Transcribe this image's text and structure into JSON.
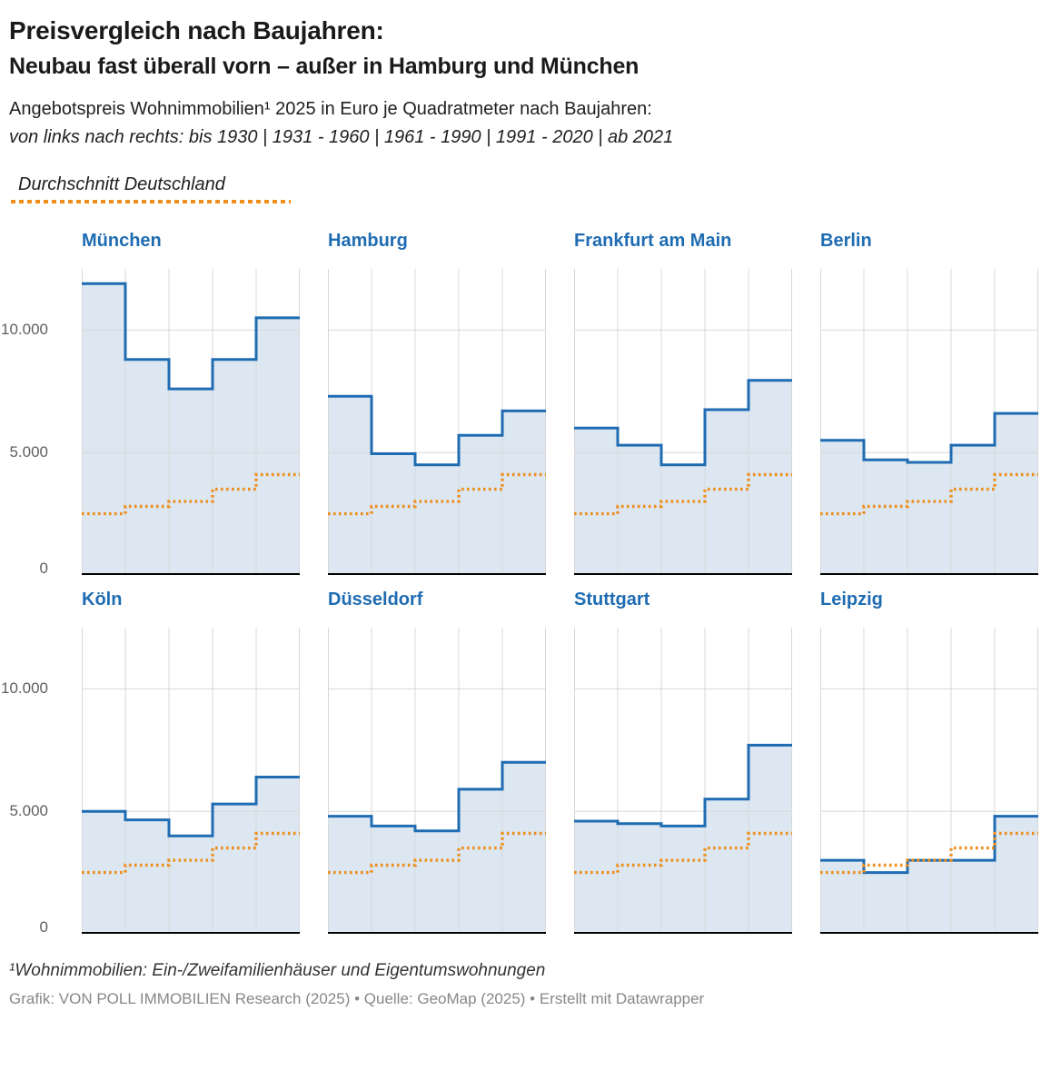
{
  "header": {
    "title_line1": "Preisvergleich nach Baujahren:",
    "title_line2": "Neubau fast überall vorn – außer in Hamburg und München",
    "description_line1": "Angebotspreis Wohnimmobilien¹ 2025 in Euro je Quadratmeter nach Baujahren:",
    "description_line2": "von links nach rechts: bis 1930 | 1931 - 1960 | 1961 - 1990 | 1991 - 2020 | ab 2021"
  },
  "legend": {
    "label": "Durchschnitt Deutschland"
  },
  "colors": {
    "city_line": "#1f6cb2",
    "city_fill": "#dce7f2",
    "average_dotted_line": "#ef8e1b",
    "grid": "#d8d8d8",
    "baseline": "#000000"
  },
  "chart_data": {
    "type": "area",
    "subtype": "step-small-multiples",
    "categories": [
      "bis 1930",
      "1931 - 1960",
      "1961 - 1990",
      "1991 - 2020",
      "ab 2021"
    ],
    "ylim": [
      0,
      12500
    ],
    "yticks": [
      0,
      5000,
      10000
    ],
    "ytick_labels": [
      "0",
      "5.000",
      "10.000"
    ],
    "grid": "on",
    "average_series": {
      "name": "Durchschnitt Deutschland",
      "values": [
        2500,
        2800,
        3000,
        3500,
        4100
      ]
    },
    "panels": [
      {
        "city": "München",
        "values": [
          11900,
          8800,
          7600,
          8800,
          10500
        ]
      },
      {
        "city": "Hamburg",
        "values": [
          7300,
          4950,
          4500,
          5700,
          6700
        ]
      },
      {
        "city": "Frankfurt am Main",
        "values": [
          6000,
          5300,
          4500,
          6750,
          7950
        ]
      },
      {
        "city": "Berlin",
        "values": [
          5500,
          4700,
          4600,
          5300,
          6600
        ]
      },
      {
        "city": "Köln",
        "values": [
          5000,
          4650,
          4000,
          5300,
          6400
        ]
      },
      {
        "city": "Düsseldorf",
        "values": [
          4800,
          4400,
          4200,
          5900,
          7000
        ]
      },
      {
        "city": "Stuttgart",
        "values": [
          4600,
          4500,
          4400,
          5500,
          7700
        ]
      },
      {
        "city": "Leipzig",
        "values": [
          3000,
          2500,
          3000,
          3000,
          4800
        ]
      }
    ]
  },
  "footer": {
    "footnote": "¹Wohnimmobilien: Ein-/Zweifamilienhäuser und Eigentumswohnungen",
    "credit": "Grafik: VON POLL IMMOBILIEN Research (2025) • Quelle: GeoMap (2025) • Erstellt mit Datawrapper"
  }
}
